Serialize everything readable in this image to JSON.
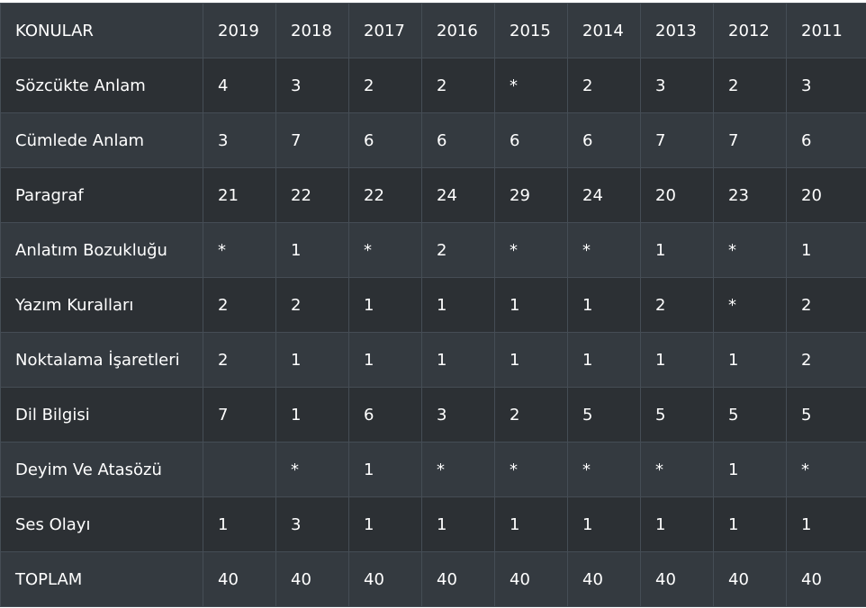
{
  "table": {
    "headers": [
      "KONULAR",
      "2019",
      "2018",
      "2017",
      "2016",
      "2015",
      "2014",
      "2013",
      "2012",
      "2011"
    ],
    "rows": [
      [
        "Sözcükte Anlam",
        "4",
        "3",
        "2",
        "2",
        "*",
        "2",
        "3",
        "2",
        "3"
      ],
      [
        "Cümlede Anlam",
        "3",
        "7",
        "6",
        "6",
        "6",
        "6",
        "7",
        "7",
        "6"
      ],
      [
        "Paragraf",
        "21",
        "22",
        "22",
        "24",
        "29",
        "24",
        "20",
        "23",
        "20"
      ],
      [
        "Anlatım Bozukluğu",
        "*",
        "1",
        "*",
        "2",
        "*",
        "*",
        "1",
        "*",
        "1"
      ],
      [
        "Yazım Kuralları",
        "2",
        "2",
        "1",
        "1",
        "1",
        "1",
        "2",
        "*",
        "2"
      ],
      [
        "Noktalama İşaretleri",
        "2",
        "1",
        "1",
        "1",
        "1",
        "1",
        "1",
        "1",
        "2"
      ],
      [
        "Dil Bilgisi",
        "7",
        "1",
        "6",
        "3",
        "2",
        "5",
        "5",
        "5",
        "5"
      ],
      [
        "Deyim Ve Atasözü",
        "",
        "*",
        "1",
        "*",
        "*",
        "*",
        "*",
        "1",
        "*"
      ],
      [
        "Ses Olayı",
        "1",
        "3",
        "1",
        "1",
        "1",
        "1",
        "1",
        "1",
        "1"
      ],
      [
        "TOPLAM",
        "40",
        "40",
        "40",
        "40",
        "40",
        "40",
        "40",
        "40",
        "40"
      ]
    ]
  },
  "colors": {
    "header_bg": "#343a40",
    "row_odd_bg": "#2c3034",
    "row_even_bg": "#343a40",
    "border": "#454d55",
    "text": "#ffffff"
  }
}
